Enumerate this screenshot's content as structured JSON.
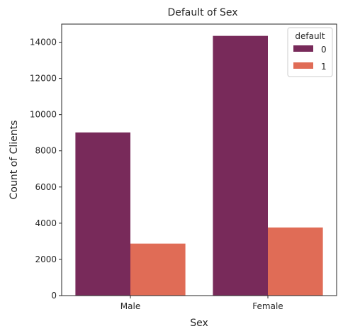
{
  "chart_data": {
    "type": "bar",
    "title": "Default of Sex",
    "xlabel": "Sex",
    "ylabel": "Count of Clients",
    "categories": [
      "Male",
      "Female"
    ],
    "series": [
      {
        "name": "0",
        "values": [
          9015,
          14349
        ],
        "color": "#782a5a"
      },
      {
        "name": "1",
        "values": [
          2873,
          3763
        ],
        "color": "#e06c56"
      }
    ],
    "ylim": [
      0,
      15000
    ],
    "yticks": [
      0,
      2000,
      4000,
      6000,
      8000,
      10000,
      12000,
      14000
    ],
    "legend": {
      "title": "default",
      "placement": "top-right"
    },
    "grid": false
  }
}
